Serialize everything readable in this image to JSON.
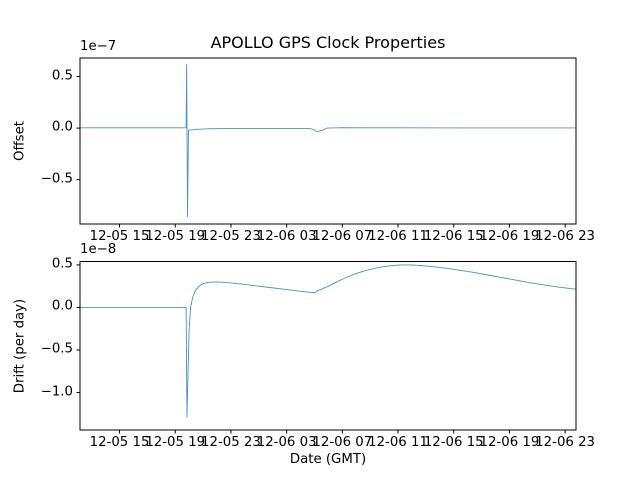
{
  "figure": {
    "title": "APOLLO GPS Clock Properties",
    "background": "#ffffff",
    "line_color": "#1f77b4",
    "spine_color": "#000000",
    "text_color": "#000000"
  },
  "chart_data": [
    {
      "type": "line",
      "title": "APOLLO GPS Clock Properties",
      "ylabel": "Offset",
      "xlabel": "",
      "offset_text": "1e−7",
      "grid": false,
      "legend": false,
      "x_ticks": [
        15,
        19,
        23,
        27,
        31,
        35,
        39,
        43,
        47
      ],
      "x_tick_labels": [
        "12-05 15",
        "12-05 19",
        "12-05 23",
        "12-06 03",
        "12-06 07",
        "12-06 11",
        "12-06 15",
        "12-06 19",
        "12-06 23"
      ],
      "xlim": [
        12.16,
        47.78
      ],
      "ylim": [
        -0.93,
        0.68
      ],
      "y_ticks": [
        0.5,
        0.0,
        -0.5
      ],
      "y_tick_labels": [
        "0.5",
        "0.0",
        "−0.5"
      ],
      "y_scale_factor": "1e-7",
      "series": [
        {
          "name": "offset",
          "x": [
            12.16,
            19.78,
            19.82,
            19.88,
            19.95,
            20.6,
            21.5,
            24.0,
            28.6,
            28.9,
            29.2,
            29.55,
            29.9,
            31.0,
            35.0,
            40.0,
            47.78
          ],
          "y": [
            0.003,
            0.003,
            0.62,
            -0.86,
            -0.02,
            -0.012,
            -0.006,
            -0.003,
            -0.003,
            -0.012,
            -0.035,
            -0.02,
            0.0,
            0.004,
            0.003,
            0.002,
            0.002
          ]
        }
      ]
    },
    {
      "type": "line",
      "title": "",
      "ylabel": "Drift (per day)",
      "xlabel": "Date (GMT)",
      "offset_text": "1e−8",
      "grid": false,
      "legend": false,
      "x_ticks": [
        15,
        19,
        23,
        27,
        31,
        35,
        39,
        43,
        47
      ],
      "x_tick_labels": [
        "12-05 15",
        "12-05 19",
        "12-05 23",
        "12-06 03",
        "12-06 07",
        "12-06 11",
        "12-06 15",
        "12-06 19",
        "12-06 23"
      ],
      "xlim": [
        12.16,
        47.78
      ],
      "ylim": [
        -1.44,
        0.54
      ],
      "y_ticks": [
        0.5,
        0.0,
        -0.5,
        -1.0
      ],
      "y_tick_labels": [
        "0.5",
        "0.0",
        "−0.5",
        "−1.0"
      ],
      "y_scale_factor": "1e-8",
      "series": [
        {
          "name": "drift",
          "x": [
            12.16,
            19.78,
            19.84,
            19.92,
            20.0,
            20.1,
            20.25,
            20.45,
            20.7,
            21.0,
            21.4,
            21.9,
            22.5,
            23.2,
            24.0,
            25.0,
            26.0,
            27.0,
            28.0,
            28.7,
            29.05,
            29.25,
            29.5,
            30.0,
            30.6,
            31.3,
            32.0,
            32.8,
            33.6,
            34.4,
            35.2,
            36.0,
            36.8,
            37.6,
            38.5,
            39.5,
            40.5,
            41.5,
            42.5,
            43.5,
            44.5,
            45.5,
            46.5,
            47.78
          ],
          "y": [
            0.0,
            0.0,
            -1.29,
            -0.75,
            -0.25,
            0.0,
            0.12,
            0.2,
            0.25,
            0.28,
            0.295,
            0.3,
            0.295,
            0.285,
            0.27,
            0.25,
            0.23,
            0.21,
            0.19,
            0.178,
            0.175,
            0.2,
            0.215,
            0.25,
            0.3,
            0.355,
            0.4,
            0.44,
            0.47,
            0.49,
            0.5,
            0.5,
            0.49,
            0.478,
            0.46,
            0.435,
            0.41,
            0.38,
            0.35,
            0.32,
            0.29,
            0.265,
            0.24,
            0.215
          ]
        }
      ]
    }
  ]
}
